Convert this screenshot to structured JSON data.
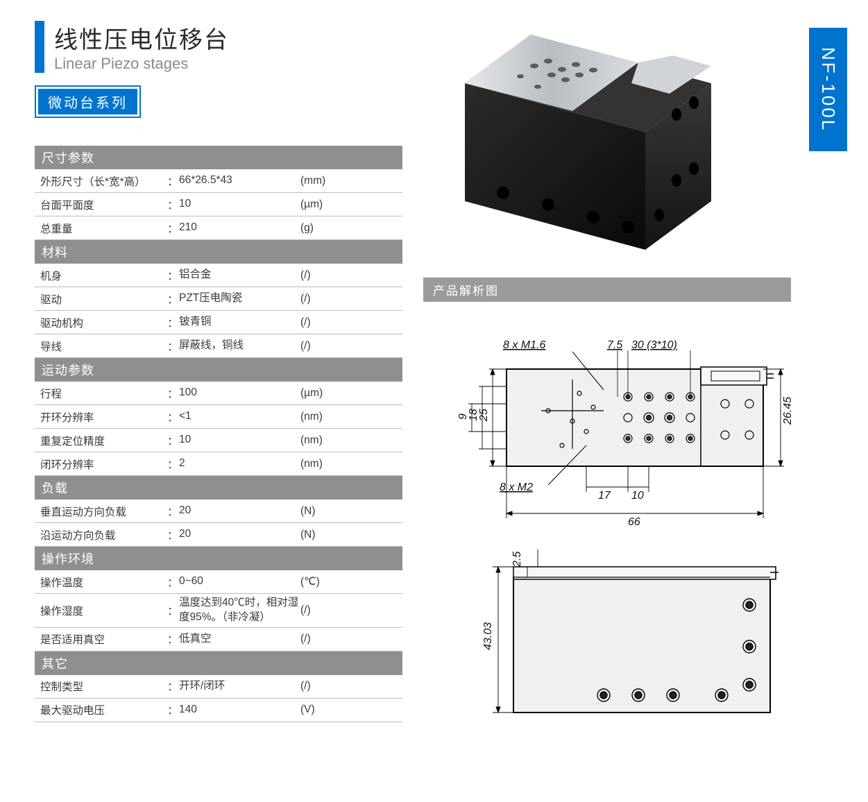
{
  "model_tag": "NF-100L",
  "header": {
    "title_cn": "线性压电位移台",
    "title_en": "Linear Piezo stages",
    "series": "微动台系列"
  },
  "colors": {
    "accent": "#0073cf",
    "section_head_bg": "#8f8f8f",
    "diagram_head_bg": "#9a9a9a",
    "row_border": "#bdbdbd",
    "text": "#3a3a3a",
    "body_dark": "#1a1a1a",
    "top_plate": "#c7ccd0",
    "drawing_bg": "#f3f3f3",
    "drawing_line": "#000000"
  },
  "sections": [
    {
      "title": "尺寸参数",
      "rows": [
        {
          "label": "外形尺寸（长*宽*高）",
          "value": "66*26.5*43",
          "unit": "(mm)"
        },
        {
          "label": "台面平面度",
          "value": "10",
          "unit": "(µm)"
        },
        {
          "label": "总重量",
          "value": "210",
          "unit": "(g)"
        }
      ]
    },
    {
      "title": "材料",
      "rows": [
        {
          "label": "机身",
          "value": "铝合金",
          "unit": "(/)"
        },
        {
          "label": "驱动",
          "value": "PZT压电陶瓷",
          "unit": "(/)"
        },
        {
          "label": "驱动机构",
          "value": "铍青铜",
          "unit": "(/)"
        },
        {
          "label": "导线",
          "value": "屏蔽线，铜线",
          "unit": "(/)"
        }
      ]
    },
    {
      "title": "运动参数",
      "rows": [
        {
          "label": "行程",
          "value": "100",
          "unit": "(µm)"
        },
        {
          "label": "开环分辨率",
          "value": "<1",
          "unit": "(nm)"
        },
        {
          "label": "重复定位精度",
          "value": "10",
          "unit": "(nm)"
        },
        {
          "label": "闭环分辨率",
          "value": "2",
          "unit": "(nm)"
        }
      ]
    },
    {
      "title": "负载",
      "rows": [
        {
          "label": "垂直运动方向负载",
          "value": "20",
          "unit": "(N)"
        },
        {
          "label": "沿运动方向负载",
          "value": "20",
          "unit": "(N)"
        }
      ]
    },
    {
      "title": "操作环境",
      "rows": [
        {
          "label": "操作温度",
          "value": "0~60",
          "unit": "(℃)"
        },
        {
          "label": "操作湿度",
          "value": "温度达到40℃时，相对湿度95%。（非冷凝）",
          "unit": "(/)"
        },
        {
          "label": "是否适用真空",
          "value": "低真空",
          "unit": "(/)"
        }
      ]
    },
    {
      "title": "其它",
      "rows": [
        {
          "label": "控制类型",
          "value": "开环/闭环",
          "unit": "(/)"
        },
        {
          "label": "最大驱动电压",
          "value": "140",
          "unit": "(V)"
        }
      ]
    }
  ],
  "diagram": {
    "title": "产品解析图",
    "top_view": {
      "annotations": {
        "holes1": "8 x M1.6",
        "dim_7_5": "7.5",
        "dim_30": "30  (3*10)",
        "dim_25": "25",
        "dim_18": "18",
        "dim_9": "9",
        "holes2": "8 x M2",
        "dim_17": "17",
        "dim_10": "10",
        "dim_66": "66",
        "dim_26_45": "26.45"
      }
    },
    "side_view": {
      "annotations": {
        "dim_2_5": "2.5",
        "dim_43_03": "43.03"
      }
    }
  }
}
